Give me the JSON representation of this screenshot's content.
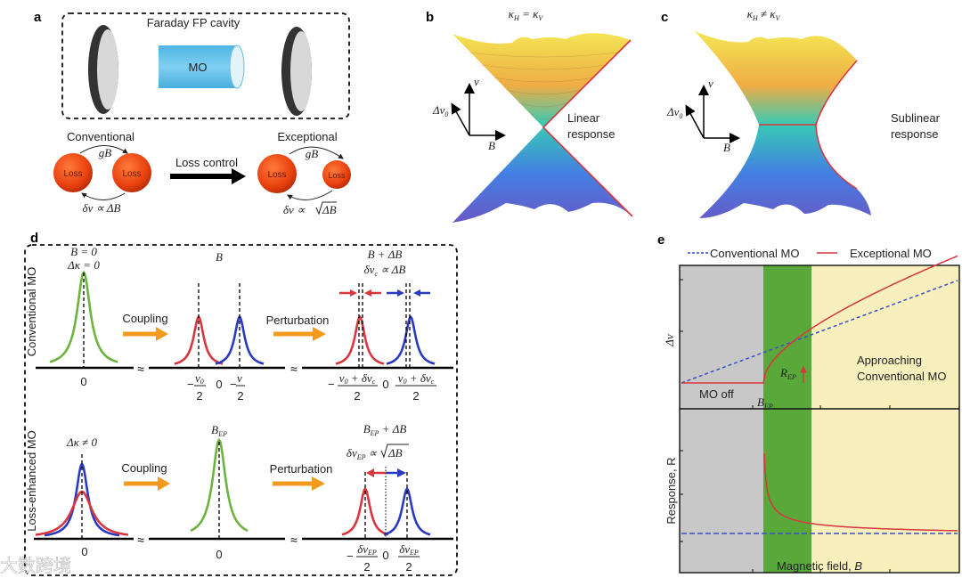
{
  "watermark": "大数跨境",
  "colors": {
    "red": "#d9363e",
    "blue": "#2b3bc0",
    "green": "#6cb33f",
    "orange": "#f39a1e",
    "gray_region": "#c8c8c8",
    "green_region": "#5aa83a",
    "yellow_region": "#f7f0bd",
    "mo_cylinder": "#5bbfe6"
  },
  "panel_a": {
    "label": "a",
    "cavity_title": "Faraday FP cavity",
    "mo_label": "MO",
    "conventional": "Conventional",
    "exceptional": "Exceptional",
    "loss": "Loss",
    "coupling": "gB",
    "loss_control": "Loss control",
    "conv_relation": "δν ∝ ΔB",
    "exc_relation_prefix": "δν ∝ ",
    "exc_relation_root": "ΔB"
  },
  "panel_b": {
    "label": "b",
    "cond_k1": "κ",
    "cond_s1": "H",
    "cond_op": " = κ",
    "cond_s2": "V",
    "axis_nu": "ν",
    "axis_dnu": "Δν",
    "axis_dnu_sub": "0",
    "axis_b": "B",
    "response_line1": "Linear",
    "response_line2": "response"
  },
  "panel_c": {
    "label": "c",
    "cond_k1": "κ",
    "cond_s1": "H",
    "cond_op": " ≠ κ",
    "cond_s2": "V",
    "axis_nu": "ν",
    "axis_dnu": "Δν",
    "axis_dnu_sub": "0",
    "axis_b": "B",
    "response_line1": "Sublinear",
    "response_line2": "response"
  },
  "panel_d": {
    "label": "d",
    "row1_title": "Conventional MO",
    "row2_title": "Loss-enhanced MO",
    "coupling": "Coupling",
    "perturbation": "Perturbation",
    "break_symbol": "≈",
    "zero": "0",
    "two": "2",
    "r1": {
      "c1_line1": "B = 0",
      "c1_line2": "Δκ = 0",
      "c2_title": "B",
      "c2_left_num": "ν",
      "c2_left_sub": "0",
      "c2_right_num": "ν",
      "c3_line1": "B + ΔB",
      "c3_line2a": "δν",
      "c3_line2s": "c",
      "c3_line2b": " ∝ ΔB",
      "c3_num_a": "ν",
      "c3_num_s1": "0",
      "c3_num_b": " + δν",
      "c3_num_s2": "c"
    },
    "r2": {
      "c1_line1": "Δκ ≠ 0",
      "c2_title": "B",
      "c2_title_sub": "EP",
      "c3_line1a": "B",
      "c3_line1s": "EP",
      "c3_line1b": " + ΔB",
      "c3_line2a": "δν",
      "c3_line2s": "EP",
      "c3_line2b": " ∝ ",
      "c3_line2root": "ΔB",
      "c3_num_a": "δν",
      "c3_num_s": "EP"
    },
    "minus": "−"
  },
  "panel_e": {
    "label": "e",
    "legend": [
      {
        "name": "Conventional MO",
        "style": "dashed",
        "color": "#3a4fc8"
      },
      {
        "name": "Exceptional MO",
        "style": "solid",
        "color": "#d9363e"
      }
    ],
    "top_ylabel": "Δν",
    "bottom_ylabel": "Response, R",
    "xlabel_text": "Magnetic field, ",
    "xlabel_var": "B",
    "mo_off": "MO off",
    "bep": "B",
    "bep_sub": "EP",
    "rep": "R",
    "rep_sub": "EP",
    "approach_line1": "Approaching",
    "approach_line2": "Conventional MO"
  }
}
